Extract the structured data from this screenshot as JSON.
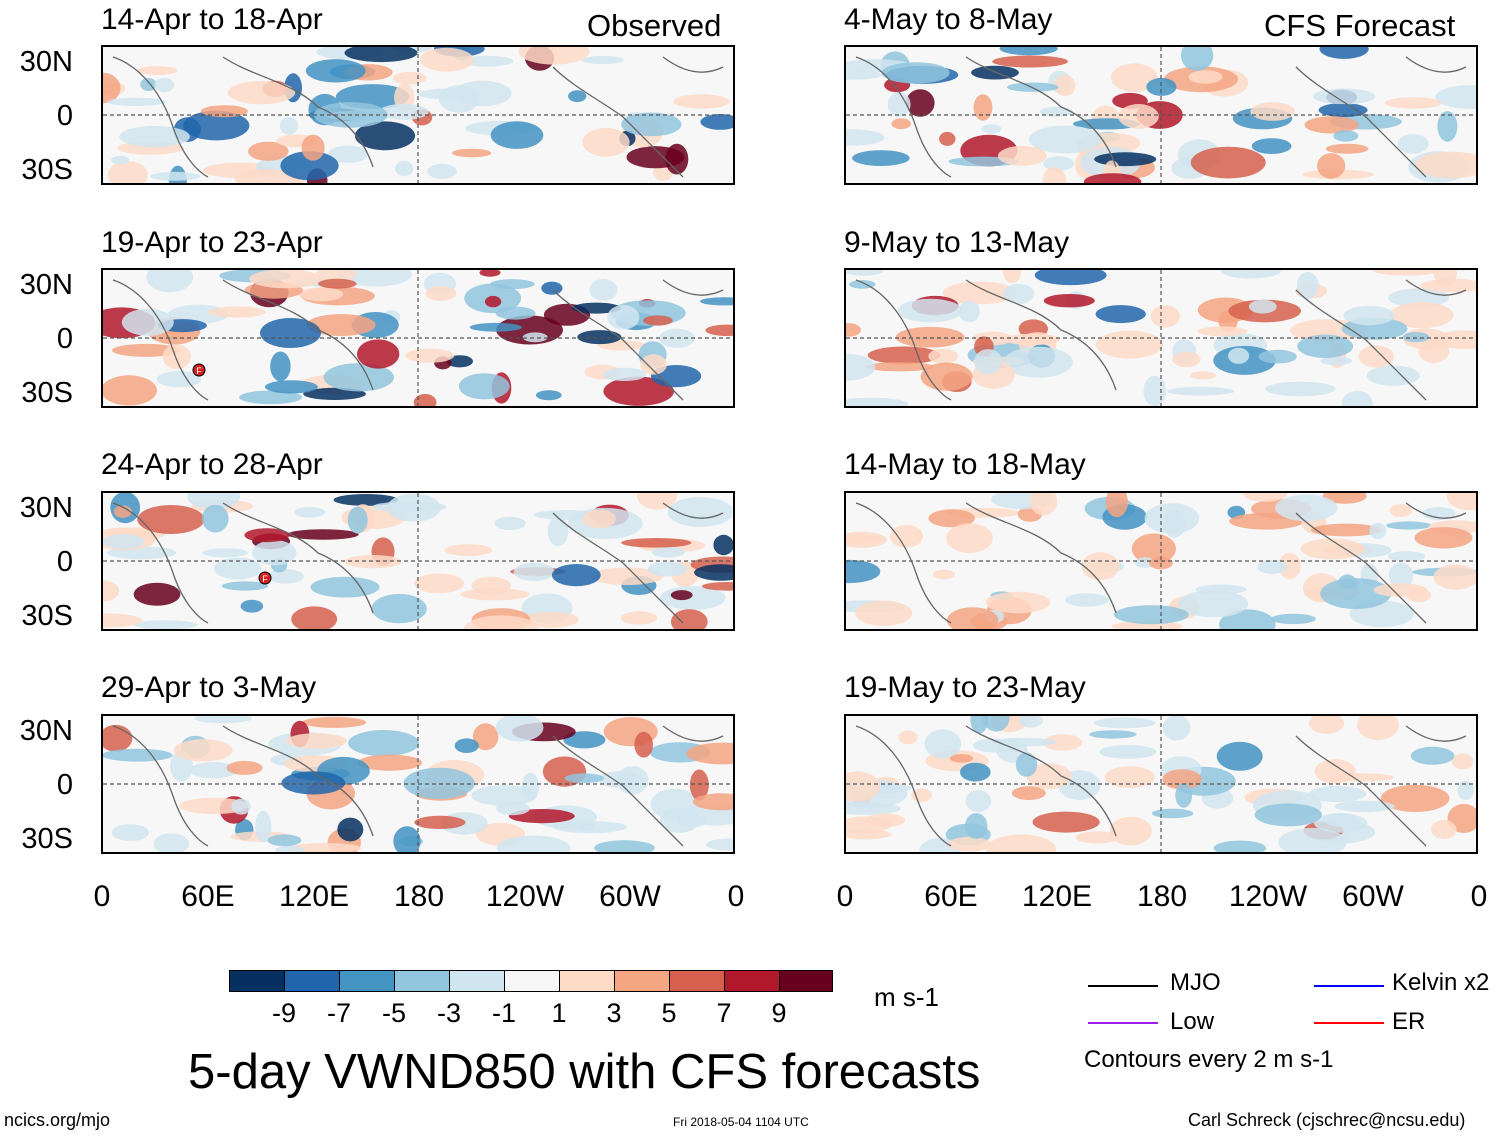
{
  "chart_data": {
    "type": "heatmap",
    "title": "5-day VWND850 with CFS forecasts",
    "variable": "850-hPa meridional wind anomaly",
    "units": "m s-1",
    "column_headers": {
      "observed": "Observed",
      "forecast": "CFS Forecast"
    },
    "observed_panels": [
      {
        "label": "14-Apr to 18-Apr"
      },
      {
        "label": "19-Apr to 23-Apr"
      },
      {
        "label": "24-Apr to 28-Apr"
      },
      {
        "label": "29-Apr to 3-May"
      }
    ],
    "forecast_panels": [
      {
        "label": "4-May to 8-May"
      },
      {
        "label": "9-May to 13-May"
      },
      {
        "label": "14-May to 18-May"
      },
      {
        "label": "19-May to 23-May"
      }
    ],
    "lat_ticks": [
      "30N",
      "0",
      "30S"
    ],
    "lon_ticks": [
      "0",
      "60E",
      "120E",
      "180",
      "120W",
      "60W",
      "0"
    ],
    "colorbar": {
      "ticks": [
        "-9",
        "-7",
        "-5",
        "-3",
        "-1",
        "1",
        "3",
        "5",
        "7",
        "9"
      ],
      "units_label": "m s-1",
      "colors": [
        "#053061",
        "#2166ac",
        "#4393c3",
        "#92c5de",
        "#d1e5f0",
        "#f7f7f7",
        "#fddbc7",
        "#f4a582",
        "#d6604d",
        "#b2182b",
        "#67001f"
      ]
    },
    "legend": {
      "entries": [
        {
          "label": "MJO",
          "color": "#000000"
        },
        {
          "label": "Kelvin x2",
          "color": "#0000ff"
        },
        {
          "label": "Low",
          "color": "#a020f0"
        },
        {
          "label": "ER",
          "color": "#ff0000"
        }
      ],
      "contour_note": "Contours every 2 m s-1"
    },
    "storm_marker_label": "F"
  },
  "footer": {
    "left": "ncics.org/mjo",
    "center": "Fri 2018-05-04 1104 UTC",
    "right": "Carl Schreck (cjschrec@ncsu.edu)"
  }
}
